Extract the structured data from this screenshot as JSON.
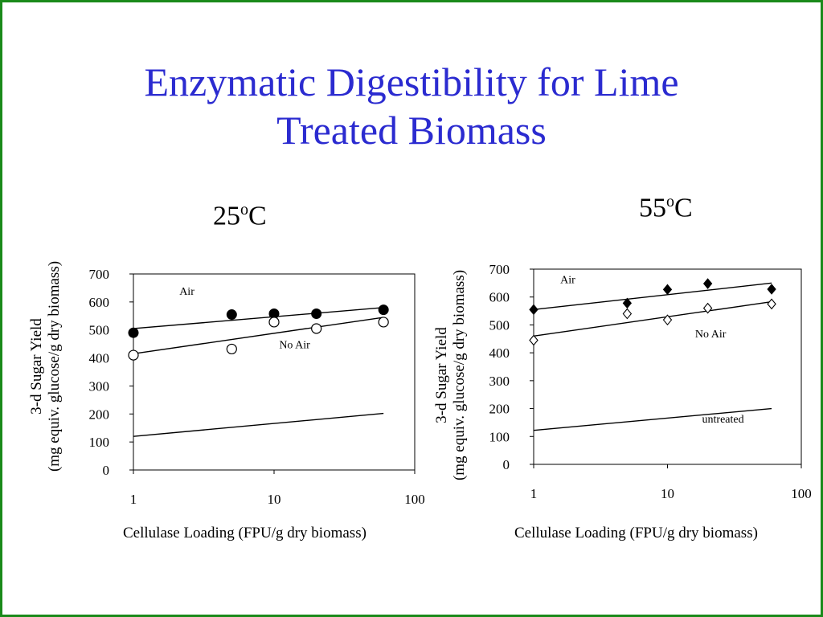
{
  "slide": {
    "title_line1": "Enzymatic Digestibility for Lime",
    "title_line2": "Treated Biomass"
  },
  "chart_data": [
    {
      "type": "scatter",
      "panel_label_base": "25",
      "panel_label_sup": "o",
      "panel_label_unit": "C",
      "xlabel": "Cellulase Loading (FPU/g dry biomass)",
      "ylabel_line1": "3-d Sugar Yield",
      "ylabel_line2": "(mg equiv. glucose/g dry biomass)",
      "xscale": "log",
      "xlim": [
        1,
        100
      ],
      "ylim": [
        0,
        700
      ],
      "xticks": [
        1,
        10,
        100
      ],
      "xtick_labels": [
        "1",
        "10",
        "100"
      ],
      "yticks": [
        0,
        100,
        200,
        300,
        400,
        500,
        600,
        700
      ],
      "ytick_labels": [
        "0",
        "100",
        "200",
        "300",
        "400",
        "500",
        "600",
        "700"
      ],
      "grid": false,
      "series": [
        {
          "name": "Air",
          "marker": "filled-circle",
          "x": [
            1,
            5,
            10,
            20,
            60
          ],
          "y": [
            490,
            555,
            558,
            558,
            572
          ],
          "fit": {
            "x": [
              1,
              60
            ],
            "y": [
              505,
              580
            ]
          }
        },
        {
          "name": "No Air",
          "marker": "open-circle",
          "x": [
            1,
            5,
            10,
            20,
            60
          ],
          "y": [
            410,
            432,
            528,
            505,
            528
          ],
          "fit": {
            "x": [
              1,
              60
            ],
            "y": [
              415,
              545
            ]
          }
        },
        {
          "name": "",
          "marker": "none",
          "x": [],
          "y": [],
          "fit": {
            "x": [
              1,
              60
            ],
            "y": [
              120,
              202
            ]
          }
        }
      ],
      "annotations": [
        {
          "text": "Air",
          "x": 2.4,
          "y": 625
        },
        {
          "text": "No Air",
          "x": 14,
          "y": 435
        }
      ]
    },
    {
      "type": "scatter",
      "panel_label_base": "55",
      "panel_label_sup": "o",
      "panel_label_unit": "C",
      "xlabel": "Cellulase Loading (FPU/g dry biomass)",
      "ylabel_line1": "3-d Sugar Yield",
      "ylabel_line2": "(mg equiv. glucose/g dry biomass)",
      "xscale": "log",
      "xlim": [
        1,
        100
      ],
      "ylim": [
        0,
        700
      ],
      "xticks": [
        1,
        10,
        100
      ],
      "xtick_labels": [
        "1",
        "10",
        "100"
      ],
      "yticks": [
        0,
        100,
        200,
        300,
        400,
        500,
        600,
        700
      ],
      "ytick_labels": [
        "0",
        "100",
        "200",
        "300",
        "400",
        "500",
        "600",
        "700"
      ],
      "grid": false,
      "series": [
        {
          "name": "Air",
          "marker": "filled-diamond",
          "x": [
            1,
            5,
            10,
            20,
            60
          ],
          "y": [
            555,
            578,
            627,
            648,
            628
          ],
          "fit": {
            "x": [
              1,
              60
            ],
            "y": [
              555,
              650
            ]
          }
        },
        {
          "name": "No Air",
          "marker": "open-diamond",
          "x": [
            1,
            5,
            10,
            20,
            60
          ],
          "y": [
            445,
            540,
            518,
            560,
            575
          ],
          "fit": {
            "x": [
              1,
              60
            ],
            "y": [
              460,
              583
            ]
          }
        },
        {
          "name": "untreated",
          "marker": "none",
          "x": [],
          "y": [],
          "fit": {
            "x": [
              1,
              60
            ],
            "y": [
              122,
              200
            ]
          }
        }
      ],
      "annotations": [
        {
          "text": "Air",
          "x": 1.8,
          "y": 650
        },
        {
          "text": "No Air",
          "x": 21,
          "y": 455
        },
        {
          "text": "untreated",
          "x": 26,
          "y": 150
        }
      ]
    }
  ]
}
